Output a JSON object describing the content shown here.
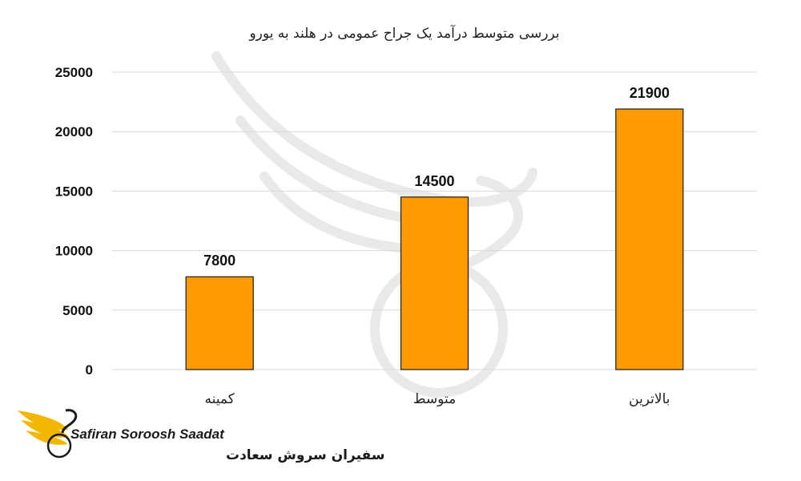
{
  "chart_data": {
    "type": "bar",
    "title": "بررسی متوسط درآمد یک جراح عمومی در هلند به یورو",
    "categories": [
      "کمینه",
      "متوسط",
      "بالاترین"
    ],
    "values": [
      7800,
      14500,
      21900
    ],
    "data_labels": [
      "7800",
      "14500",
      "21900"
    ],
    "y_ticks": [
      0,
      5000,
      10000,
      15000,
      20000,
      25000
    ],
    "ylim": [
      0,
      25000
    ],
    "grid": true,
    "legend": "none",
    "colors": {
      "bar_fill": "#FF9A00",
      "bar_stroke": "#1a1a1a",
      "grid": "#d9d9d9",
      "watermark": "#e6e6e6",
      "logo_gold": "#F2B705"
    }
  },
  "brand": {
    "name_en": "Safiran Soroosh Saadat",
    "name_fa": "سفیران سروش سعادت",
    "logo_icon": "bird-wing-logo-icon"
  }
}
